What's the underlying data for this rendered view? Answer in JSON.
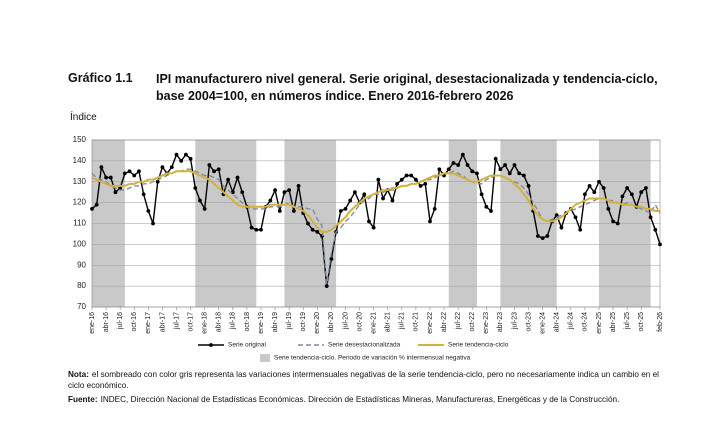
{
  "chart_data": {
    "type": "line",
    "chart_number": "Gráfico 1.1",
    "title": "IPI manufacturero nivel general. Serie original, desestacionalizada y tendencia-ciclo, base 2004=100, en números índice. Enero 2016-febrero 2026",
    "y_label": "Índice",
    "categories": [
      "ene-16",
      null,
      null,
      "abr-16",
      null,
      null,
      "jul-16",
      null,
      null,
      "oct-16",
      null,
      null,
      "ene-17",
      null,
      null,
      "abr-17",
      null,
      null,
      "jul-17",
      null,
      null,
      "oct-17",
      null,
      null,
      "ene-18",
      null,
      null,
      "abr-18",
      null,
      null,
      "jul-18",
      null,
      null,
      "oct-18",
      null,
      null,
      "ene-19",
      null,
      null,
      "abr-19",
      null,
      null,
      "jul-19",
      null,
      null,
      "oct-19",
      null,
      null,
      "ene-20",
      null,
      null,
      "abr-20",
      null,
      null,
      "jul-20",
      null,
      null,
      "oct-20",
      null,
      null,
      "ene-21",
      null,
      null,
      "abr-21",
      null,
      null,
      "jul-21",
      null,
      null,
      "oct-21",
      null,
      null,
      "ene-22",
      null,
      null,
      "abr-22",
      null,
      null,
      "jul-22",
      null,
      null,
      "oct-22",
      null,
      null,
      "ene-23",
      null,
      null,
      "abr-23",
      null,
      null,
      "jul-23",
      null,
      null,
      "oct-23",
      null,
      null,
      "ene-24",
      null,
      null,
      "abr-24",
      null,
      null,
      "jul-24",
      null,
      null,
      "oct-24",
      null,
      null,
      "ene-25",
      null,
      null,
      "abr-25",
      null,
      null,
      "jul-25",
      null,
      null,
      "oct-25",
      null,
      null,
      null,
      "feb-26"
    ],
    "series": [
      {
        "name": "Serie original",
        "color": "#000000",
        "style": "markers",
        "values": [
          117,
          119,
          137,
          132,
          132,
          125,
          127,
          134,
          135,
          133,
          135,
          124,
          116,
          110,
          130,
          137,
          134,
          137,
          143,
          140,
          143,
          141,
          127,
          121,
          117,
          138,
          135,
          136,
          124,
          131,
          125,
          132,
          125,
          118,
          108,
          107,
          107,
          118,
          121,
          126,
          116,
          125,
          126,
          116,
          128,
          115,
          110,
          107,
          106,
          104,
          80,
          93,
          106,
          116,
          117,
          121,
          125,
          120,
          124,
          111,
          108,
          131,
          122,
          126,
          121,
          129,
          131,
          133,
          133,
          131,
          128,
          129,
          111,
          117,
          136,
          133,
          136,
          139,
          138,
          143,
          138,
          135,
          134,
          124,
          118,
          116,
          141,
          136,
          138,
          134,
          138,
          134,
          133,
          128,
          116,
          104,
          103,
          104,
          111,
          114,
          108,
          115,
          117,
          113,
          107,
          124,
          128,
          125,
          130,
          127,
          117,
          111,
          110,
          123,
          127,
          124,
          118,
          125,
          127,
          113,
          107,
          100
        ]
      },
      {
        "name": "Serie desestacionalizada",
        "color": "#7d8ca3",
        "style": "dashed",
        "values": [
          134,
          132,
          131,
          130,
          128,
          127,
          126,
          126,
          127,
          128,
          128,
          129,
          129,
          130,
          131,
          132,
          133,
          134,
          135,
          135,
          136,
          136,
          135,
          134,
          133,
          133,
          132,
          131,
          128,
          126,
          124,
          122,
          120,
          118,
          117,
          117,
          117,
          117,
          118,
          118,
          118,
          119,
          120,
          118,
          118,
          118,
          117,
          117,
          112,
          109,
          81,
          96,
          106,
          108,
          111,
          113,
          116,
          119,
          121,
          122,
          124,
          124,
          125,
          126,
          126,
          127,
          128,
          128,
          129,
          129,
          130,
          131,
          131,
          132,
          133,
          134,
          134,
          135,
          134,
          133,
          131,
          130,
          129,
          129,
          131,
          132,
          133,
          133,
          132,
          131,
          130,
          129,
          127,
          124,
          120,
          116,
          112,
          111,
          112,
          113,
          114,
          115,
          116,
          117,
          118,
          119,
          120,
          121,
          122,
          122,
          121,
          121,
          120,
          119,
          120,
          119,
          118,
          117,
          116,
          115,
          119,
          115
        ]
      },
      {
        "name": "Serie tendencia-ciclo",
        "color": "#d4b13c",
        "style": "solid",
        "values": [
          132,
          131,
          130,
          129,
          128,
          128,
          128,
          128,
          129,
          129,
          130,
          130,
          131,
          131,
          132,
          133,
          134,
          134,
          135,
          135,
          135,
          135,
          134,
          133,
          132,
          131,
          129,
          127,
          125,
          123,
          121,
          119,
          118,
          118,
          118,
          118,
          118,
          118,
          119,
          119,
          119,
          119,
          119,
          118,
          117,
          116,
          114,
          111,
          108,
          106,
          106,
          107,
          109,
          111,
          113,
          116,
          118,
          120,
          122,
          123,
          124,
          125,
          126,
          126,
          127,
          127,
          128,
          128,
          129,
          129,
          130,
          131,
          132,
          133,
          133,
          134,
          134,
          134,
          133,
          132,
          131,
          130,
          130,
          131,
          132,
          133,
          133,
          133,
          132,
          131,
          129,
          127,
          124,
          121,
          117,
          114,
          112,
          111,
          111,
          112,
          113,
          115,
          117,
          119,
          120,
          121,
          122,
          122,
          122,
          122,
          121,
          120,
          120,
          119,
          119,
          119,
          118,
          118,
          117,
          117,
          116,
          116
        ]
      }
    ],
    "shaded_periods": [
      [
        0,
        7
      ],
      [
        22,
        35
      ],
      [
        41,
        52
      ],
      [
        76,
        82
      ],
      [
        87,
        99
      ],
      [
        108,
        119
      ]
    ],
    "shading_label": "Serie tendencia-ciclo. Periodo de variación % intermensual negativa",
    "shading_color": "#c9c9c9",
    "ylim": [
      70,
      150
    ],
    "yticks": [
      70,
      80,
      90,
      100,
      110,
      120,
      130,
      140,
      150
    ],
    "grid": true,
    "notes": [
      {
        "label": "Nota:",
        "text": "el sombreado con color gris representa las variaciones intermensuales negativas de la serie tendencia-ciclo, pero no necesariamente indica un cambio en el ciclo económico."
      },
      {
        "label": "Fuente:",
        "text": "INDEC, Dirección Nacional de Estadísticas Económicas. Dirección de Estadísticas Mineras, Manufactureras, Energéticas y de la Construcción."
      }
    ]
  }
}
